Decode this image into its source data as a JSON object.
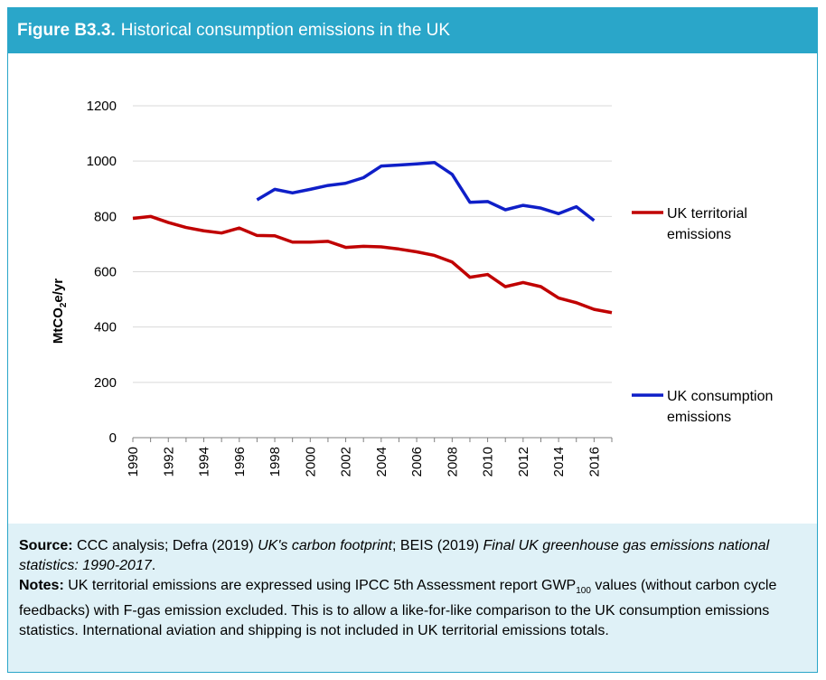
{
  "header": {
    "figure_label": "Figure B3.3.",
    "title": "Historical consumption emissions in the UK"
  },
  "colors": {
    "header_bg": "#2aa6c9",
    "notes_bg": "#dff1f7",
    "territorial": "#c00000",
    "consumption": "#0f1fc8"
  },
  "chart_data": {
    "type": "line",
    "ylabel_main": "MtCO",
    "ylabel_sub": "2",
    "ylabel_tail": "e/yr",
    "ylim": [
      0,
      1200
    ],
    "yticks": [
      "0",
      "200",
      "400",
      "600",
      "800",
      "1000",
      "1200"
    ],
    "xlim": [
      1990,
      2017
    ],
    "xticks": [
      "1990",
      "1992",
      "1994",
      "1996",
      "1998",
      "2000",
      "2002",
      "2004",
      "2006",
      "2008",
      "2010",
      "2012",
      "2014",
      "2016"
    ],
    "grid": "horizontal",
    "series": [
      {
        "name_line1": "UK territorial",
        "name_line2": "emissions",
        "color": "#c00000",
        "x": [
          1990,
          1991,
          1992,
          1993,
          1994,
          1995,
          1996,
          1997,
          1998,
          1999,
          2000,
          2001,
          2002,
          2003,
          2004,
          2005,
          2006,
          2007,
          2008,
          2009,
          2010,
          2011,
          2012,
          2013,
          2014,
          2015,
          2016,
          2017
        ],
        "y": [
          793,
          800,
          778,
          760,
          748,
          740,
          758,
          731,
          730,
          707,
          707,
          710,
          688,
          692,
          690,
          682,
          672,
          659,
          635,
          580,
          590,
          546,
          561,
          546,
          505,
          488,
          464,
          452
        ]
      },
      {
        "name_line1": "UK consumption",
        "name_line2": "emissions",
        "color": "#0f1fc8",
        "x": [
          1997,
          1998,
          1999,
          2000,
          2001,
          2002,
          2003,
          2004,
          2005,
          2006,
          2007,
          2008,
          2009,
          2010,
          2011,
          2012,
          2013,
          2014,
          2015,
          2016
        ],
        "y": [
          860,
          898,
          885,
          898,
          912,
          920,
          940,
          982,
          986,
          990,
          995,
          952,
          851,
          854,
          824,
          840,
          830,
          810,
          835,
          785
        ]
      }
    ]
  },
  "notes": {
    "source_label": "Source:",
    "source_text_1": " CCC analysis; Defra (2019) ",
    "source_italic_1": "UK's carbon footprint",
    "source_text_2": "; BEIS (2019) ",
    "source_italic_2": "Final UK greenhouse gas emissions national statistics: 1990-2017",
    "source_text_3": ".",
    "notes_label": "Notes:",
    "notes_text_1": " UK territorial emissions are expressed using IPCC 5th Assessment report GWP",
    "notes_sub": "100",
    "notes_text_2": " values (without carbon cycle feedbacks) with F-gas emission excluded. This is to allow a like-for-like comparison to the UK consumption emissions statistics. International aviation and shipping is not included in UK territorial emissions totals."
  }
}
